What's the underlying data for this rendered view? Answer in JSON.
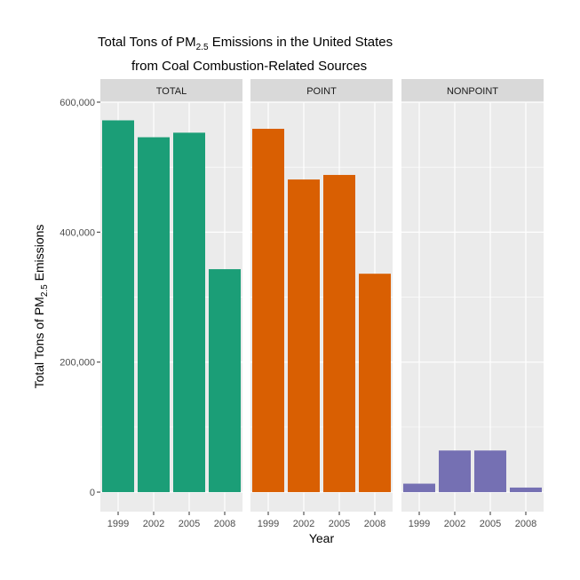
{
  "chart_data": {
    "type": "bar",
    "title_line1_prefix": "Total Tons of PM",
    "title_line1_sub": "2.5",
    "title_line1_suffix": " Emissions in the United States",
    "title_line2": "from Coal Combustion-Related Sources",
    "xlabel": "Year",
    "ylabel_prefix": "Total Tons of PM",
    "ylabel_sub": "2.5",
    "ylabel_suffix": " Emissions",
    "categories": [
      "1999",
      "2002",
      "2005",
      "2008"
    ],
    "ylim": [
      -30000,
      600000
    ],
    "y_ticks": [
      0,
      200000,
      400000,
      600000
    ],
    "y_tick_labels": [
      "0",
      "200,000",
      "400,000",
      "600,000"
    ],
    "grid": true,
    "facets": [
      {
        "name": "TOTAL",
        "color": "#1b9e77",
        "values": [
          572000,
          546000,
          553000,
          343000
        ]
      },
      {
        "name": "POINT",
        "color": "#d95f02",
        "values": [
          559000,
          481000,
          488000,
          336000
        ]
      },
      {
        "name": "NONPOINT",
        "color": "#7570b3",
        "values": [
          13000,
          64000,
          64000,
          7000
        ]
      }
    ]
  }
}
